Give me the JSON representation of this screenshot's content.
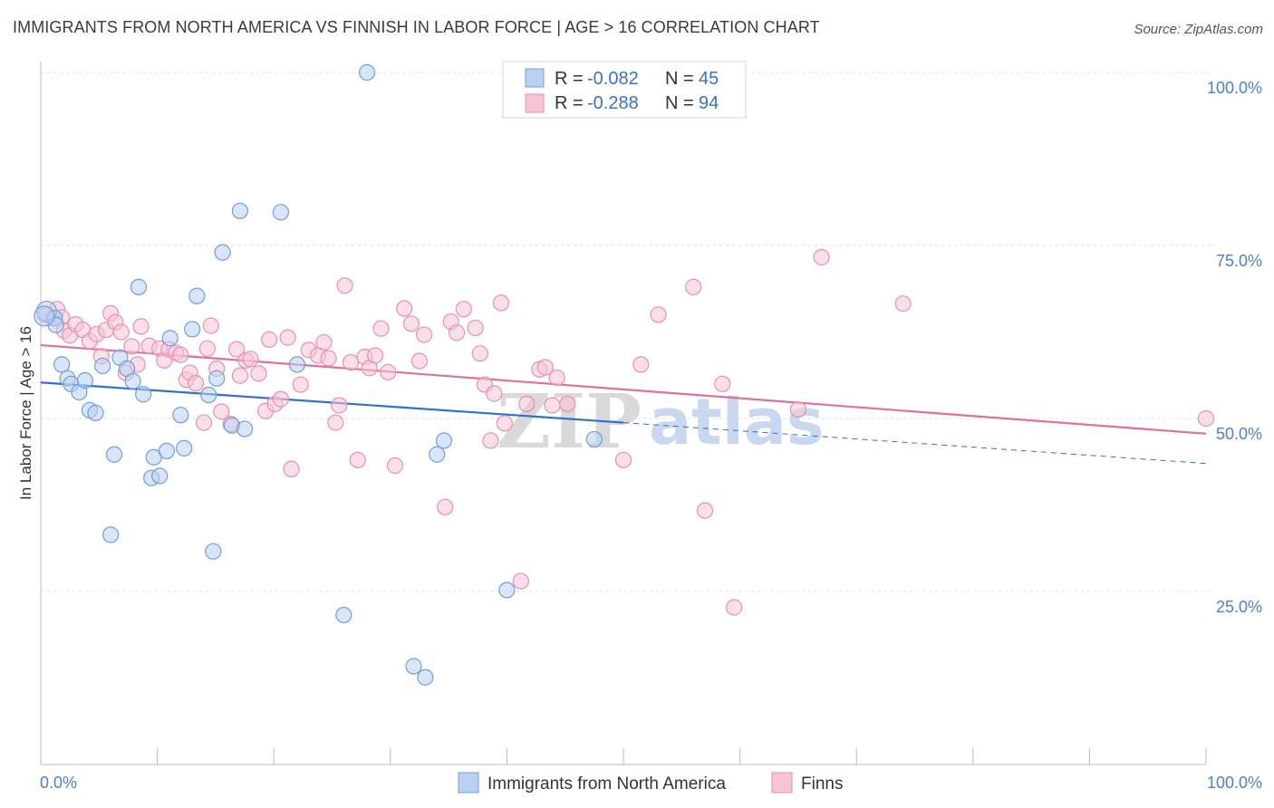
{
  "title": "IMMIGRANTS FROM NORTH AMERICA VS FINNISH IN LABOR FORCE | AGE > 16 CORRELATION CHART",
  "source": "Source: ZipAtlas.com",
  "watermark": {
    "zip": "ZIP",
    "atlas": "atlas"
  },
  "colors": {
    "blue": "#6f9ee0",
    "blue_fill": "#b9d0f2",
    "blue_line": "#2f6fd0",
    "pink": "#e98fae",
    "pink_fill": "#f6c4d5",
    "pink_line": "#e0709a",
    "axis_label": "#4a7fd4",
    "grid": "#dddddd"
  },
  "chart_data": {
    "type": "scatter",
    "xlabel": "",
    "ylabel": "In Labor Force | Age > 16",
    "xlim": [
      0,
      100
    ],
    "ylim": [
      0,
      105
    ],
    "x_tick_labels": [
      {
        "value": 0,
        "label": "0.0%"
      },
      {
        "value": 100,
        "label": "100.0%"
      }
    ],
    "y_tick_labels": [
      {
        "value": 25,
        "label": "25.0%"
      },
      {
        "value": 50,
        "label": "50.0%"
      },
      {
        "value": 75,
        "label": "75.0%"
      },
      {
        "value": 100,
        "label": "100.0%"
      }
    ],
    "legend": {
      "entries": [
        {
          "r_label": "R =",
          "r_value": "-0.082",
          "n_label": "N =",
          "n_value": "45"
        },
        {
          "r_label": "R =",
          "r_value": "-0.288",
          "n_label": "N =",
          "n_value": "94"
        }
      ]
    },
    "series": [
      {
        "name": "Immigrants from North America",
        "color": "#6f9ee0",
        "trend": {
          "x0": 0,
          "y0": 55.2,
          "x1": 50,
          "y1": 49.4,
          "dashed_to_x": 100,
          "dashed_to_y": 43.5
        },
        "points": [
          [
            0.5,
            65.5
          ],
          [
            1.2,
            64.5
          ],
          [
            1.3,
            63.5
          ],
          [
            1.8,
            57.8
          ],
          [
            2.3,
            55.8
          ],
          [
            2.6,
            55
          ],
          [
            3.3,
            53.8
          ],
          [
            3.8,
            55.5
          ],
          [
            4.2,
            51.2
          ],
          [
            4.7,
            50.8
          ],
          [
            5.3,
            57.6
          ],
          [
            6.3,
            44.8
          ],
          [
            6.0,
            33.2
          ],
          [
            6.8,
            58.8
          ],
          [
            7.4,
            57.2
          ],
          [
            7.9,
            55.4
          ],
          [
            8.4,
            69
          ],
          [
            8.8,
            53.5
          ],
          [
            9.5,
            41.4
          ],
          [
            9.7,
            44.4
          ],
          [
            10.2,
            41.7
          ],
          [
            10.8,
            45.3
          ],
          [
            11.1,
            61.6
          ],
          [
            12.0,
            50.5
          ],
          [
            12.3,
            45.7
          ],
          [
            13.0,
            62.9
          ],
          [
            13.4,
            67.7
          ],
          [
            14.4,
            53.4
          ],
          [
            14.8,
            30.8
          ],
          [
            15.1,
            55.8
          ],
          [
            15.6,
            74
          ],
          [
            16.4,
            49
          ],
          [
            17.1,
            80
          ],
          [
            17.5,
            48.5
          ],
          [
            20.6,
            79.8
          ],
          [
            22.0,
            57.8
          ],
          [
            26.0,
            21.6
          ],
          [
            28.0,
            100
          ],
          [
            32.0,
            14.2
          ],
          [
            33.0,
            12.6
          ],
          [
            34.0,
            44.8
          ],
          [
            34.6,
            46.8
          ],
          [
            40.0,
            25.2
          ],
          [
            47.5,
            47.0
          ],
          [
            0.3,
            64.8
          ]
        ]
      },
      {
        "name": "Finns",
        "color": "#e98fae",
        "trend": {
          "x0": 0,
          "y0": 60.6,
          "x1": 100,
          "y1": 47.8
        },
        "points": [
          [
            0.4,
            65.0
          ],
          [
            1.0,
            64.5
          ],
          [
            1.4,
            65.8
          ],
          [
            1.8,
            64.6
          ],
          [
            2.0,
            62.7
          ],
          [
            2.5,
            62.0
          ],
          [
            3.0,
            63.6
          ],
          [
            3.6,
            62.8
          ],
          [
            4.2,
            61.2
          ],
          [
            4.8,
            62.2
          ],
          [
            5.2,
            59.0
          ],
          [
            5.6,
            62.8
          ],
          [
            6.0,
            65.2
          ],
          [
            6.4,
            63.9
          ],
          [
            6.9,
            62.5
          ],
          [
            7.3,
            56.6
          ],
          [
            7.8,
            60.4
          ],
          [
            8.3,
            57.8
          ],
          [
            8.6,
            63.3
          ],
          [
            9.3,
            60.5
          ],
          [
            10.2,
            60.1
          ],
          [
            10.6,
            58.4
          ],
          [
            11.0,
            60.0
          ],
          [
            11.6,
            59.5
          ],
          [
            12.0,
            59.2
          ],
          [
            12.5,
            55.6
          ],
          [
            12.8,
            56.6
          ],
          [
            13.3,
            55.1
          ],
          [
            14.0,
            49.4
          ],
          [
            14.3,
            60.1
          ],
          [
            14.6,
            63.4
          ],
          [
            15.1,
            57.2
          ],
          [
            15.5,
            51.0
          ],
          [
            16.3,
            49.2
          ],
          [
            16.8,
            60.0
          ],
          [
            17.1,
            56.2
          ],
          [
            17.6,
            58.4
          ],
          [
            18.0,
            58.6
          ],
          [
            18.7,
            56.5
          ],
          [
            19.3,
            51.1
          ],
          [
            19.6,
            61.4
          ],
          [
            20.1,
            52.1
          ],
          [
            20.6,
            52.8
          ],
          [
            21.2,
            61.7
          ],
          [
            21.5,
            42.7
          ],
          [
            22.3,
            54.9
          ],
          [
            23.0,
            59.9
          ],
          [
            23.8,
            59.1
          ],
          [
            24.3,
            61.0
          ],
          [
            24.7,
            58.7
          ],
          [
            25.3,
            49.4
          ],
          [
            25.6,
            51.9
          ],
          [
            26.1,
            69.2
          ],
          [
            26.6,
            58.1
          ],
          [
            27.2,
            44.0
          ],
          [
            27.8,
            58.9
          ],
          [
            28.2,
            57.3
          ],
          [
            28.7,
            59.1
          ],
          [
            29.2,
            63.0
          ],
          [
            29.8,
            56.7
          ],
          [
            30.4,
            43.2
          ],
          [
            31.2,
            65.9
          ],
          [
            31.8,
            63.7
          ],
          [
            32.5,
            58.3
          ],
          [
            32.9,
            62.1
          ],
          [
            34.7,
            37.2
          ],
          [
            35.2,
            64.0
          ],
          [
            35.7,
            62.4
          ],
          [
            36.3,
            65.8
          ],
          [
            37.3,
            63.1
          ],
          [
            37.7,
            59.4
          ],
          [
            38.1,
            54.9
          ],
          [
            38.6,
            46.8
          ],
          [
            38.9,
            53.6
          ],
          [
            39.5,
            66.7
          ],
          [
            39.8,
            49.3
          ],
          [
            41.2,
            26.5
          ],
          [
            41.7,
            52.1
          ],
          [
            42.8,
            57.1
          ],
          [
            43.3,
            57.4
          ],
          [
            43.9,
            51.9
          ],
          [
            44.3,
            55.9
          ],
          [
            45.2,
            52.1
          ],
          [
            50.0,
            44.0
          ],
          [
            51.5,
            57.8
          ],
          [
            53.0,
            65.0
          ],
          [
            56.0,
            69.0
          ],
          [
            57.0,
            36.7
          ],
          [
            58.5,
            55.0
          ],
          [
            59.5,
            22.7
          ],
          [
            65.0,
            51.3
          ],
          [
            67.0,
            73.3
          ],
          [
            74.0,
            66.6
          ],
          [
            100,
            50.0
          ]
        ]
      }
    ]
  }
}
